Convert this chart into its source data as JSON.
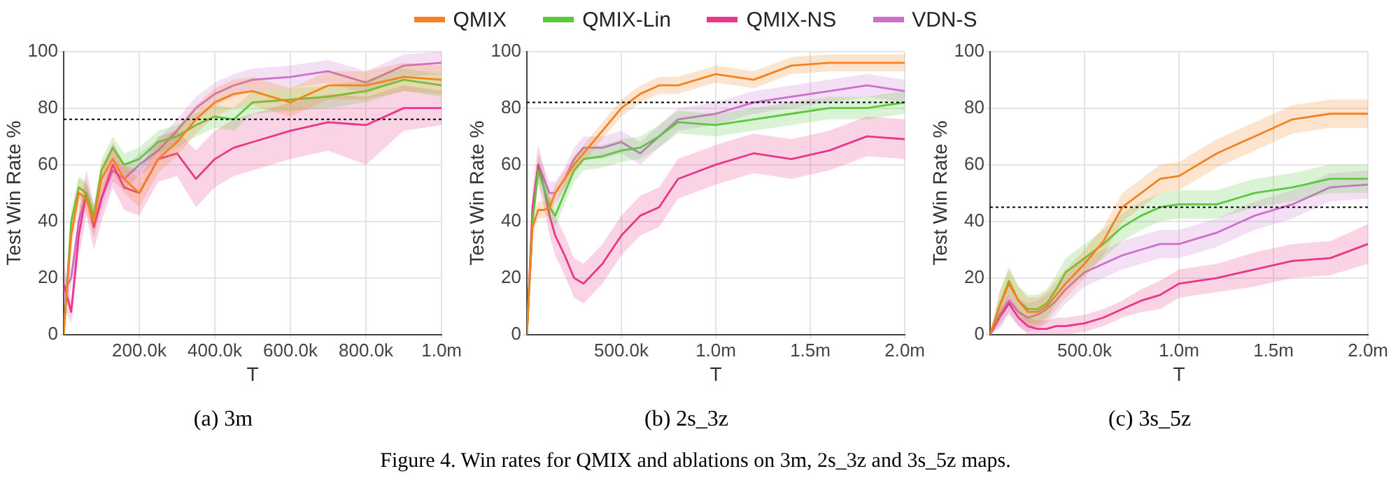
{
  "chart_data": [
    {
      "type": "line",
      "title": "(a) 3m",
      "xlabel": "T",
      "ylabel": "Test Win Rate %",
      "legend": "top",
      "grid": true,
      "marker": "none",
      "line_style": "solid",
      "annotations": [
        "Figure 4. Win rates for QMIX and ablations on 3m, 2s_3z and 3s_5z maps."
      ],
      "x": [
        0,
        20000,
        40000,
        60000,
        80000,
        100000,
        130000,
        160000,
        200000,
        250000,
        300000,
        350000,
        400000,
        450000,
        500000,
        600000,
        700000,
        800000,
        900000,
        1000000
      ],
      "xlim": [
        0,
        1000000
      ],
      "xticks": [
        {
          "value": 200000,
          "label": "200.0k"
        },
        {
          "value": 400000,
          "label": "400.0k"
        },
        {
          "value": 600000,
          "label": "600.0k"
        },
        {
          "value": 800000,
          "label": "800.0k"
        },
        {
          "value": 1000000,
          "label": "1.0m"
        }
      ],
      "ylim": [
        0,
        100
      ],
      "yticks": [
        0,
        20,
        40,
        60,
        80,
        100
      ],
      "ref_lines": [
        {
          "axis": "y",
          "value": 76,
          "line_style": "dotted"
        }
      ],
      "series": [
        {
          "name": "QMIX",
          "color": "#f5821f",
          "values": [
            0,
            35,
            50,
            48,
            40,
            55,
            62,
            55,
            50,
            62,
            68,
            76,
            82,
            85,
            86,
            82,
            88,
            88,
            91,
            90
          ],
          "lower": [
            0,
            30,
            45,
            43,
            35,
            50,
            57,
            50,
            45,
            57,
            63,
            71,
            77,
            80,
            81,
            77,
            83,
            83,
            86,
            85
          ],
          "upper": [
            0,
            40,
            55,
            53,
            45,
            60,
            67,
            60,
            55,
            67,
            73,
            81,
            87,
            90,
            91,
            87,
            93,
            93,
            96,
            95
          ]
        },
        {
          "name": "QMIX-Lin",
          "color": "#5cc93e",
          "values": [
            0,
            40,
            52,
            50,
            42,
            58,
            66,
            60,
            62,
            68,
            70,
            74,
            77,
            76,
            82,
            83,
            84,
            86,
            90,
            88
          ],
          "lower": [
            0,
            36,
            48,
            46,
            38,
            54,
            62,
            56,
            58,
            64,
            66,
            70,
            73,
            72,
            78,
            79,
            80,
            82,
            86,
            84
          ],
          "upper": [
            0,
            44,
            56,
            54,
            46,
            62,
            70,
            64,
            66,
            72,
            74,
            78,
            81,
            80,
            86,
            87,
            88,
            90,
            94,
            92
          ]
        },
        {
          "name": "QMIX-NS",
          "color": "#e8378a",
          "values": [
            18,
            8,
            35,
            50,
            38,
            48,
            60,
            52,
            50,
            62,
            64,
            55,
            62,
            66,
            68,
            72,
            75,
            74,
            80,
            80
          ],
          "lower": [
            10,
            4,
            27,
            42,
            30,
            40,
            52,
            44,
            42,
            54,
            56,
            45,
            52,
            56,
            58,
            62,
            65,
            60,
            72,
            74
          ],
          "upper": [
            26,
            12,
            43,
            58,
            46,
            56,
            68,
            60,
            58,
            70,
            72,
            65,
            72,
            76,
            78,
            82,
            85,
            84,
            88,
            86
          ]
        },
        {
          "name": "VDN-S",
          "color": "#cc70cc",
          "values": [
            15,
            20,
            40,
            50,
            38,
            48,
            58,
            55,
            60,
            65,
            72,
            80,
            85,
            88,
            90,
            91,
            93,
            89,
            95,
            96
          ],
          "lower": [
            11,
            16,
            36,
            46,
            34,
            44,
            54,
            51,
            56,
            61,
            68,
            76,
            81,
            84,
            86,
            87,
            89,
            85,
            91,
            92
          ],
          "upper": [
            19,
            24,
            44,
            54,
            42,
            52,
            62,
            59,
            64,
            69,
            76,
            84,
            89,
            92,
            94,
            95,
            97,
            93,
            99,
            100
          ]
        }
      ]
    },
    {
      "type": "line",
      "title": "(b) 2s_3z",
      "xlabel": "T",
      "ylabel": "Test Win Rate %",
      "grid": true,
      "marker": "none",
      "line_style": "solid",
      "x": [
        0,
        30000,
        60000,
        90000,
        120000,
        150000,
        200000,
        250000,
        300000,
        400000,
        500000,
        600000,
        700000,
        800000,
        1000000,
        1200000,
        1400000,
        1600000,
        1800000,
        2000000
      ],
      "xlim": [
        0,
        2000000
      ],
      "xticks": [
        {
          "value": 500000,
          "label": "500.0k"
        },
        {
          "value": 1000000,
          "label": "1.0m"
        },
        {
          "value": 1500000,
          "label": "1.5m"
        },
        {
          "value": 2000000,
          "label": "2.0m"
        }
      ],
      "ylim": [
        0,
        100
      ],
      "yticks": [
        0,
        20,
        40,
        60,
        80,
        100
      ],
      "ref_lines": [
        {
          "axis": "y",
          "value": 82,
          "line_style": "dotted"
        }
      ],
      "series": [
        {
          "color": "#f5821f",
          "values": [
            0,
            38,
            44,
            44,
            45,
            50,
            55,
            60,
            64,
            72,
            80,
            85,
            88,
            88,
            92,
            90,
            95,
            96,
            96,
            96
          ],
          "lower": [
            0,
            35,
            41,
            41,
            42,
            47,
            52,
            57,
            61,
            69,
            77,
            82,
            85,
            85,
            89,
            87,
            92,
            93,
            93,
            93
          ],
          "upper": [
            0,
            41,
            47,
            47,
            48,
            53,
            58,
            63,
            67,
            75,
            83,
            88,
            91,
            91,
            95,
            93,
            98,
            99,
            99,
            99
          ]
        },
        {
          "color": "#5cc93e",
          "values": [
            0,
            40,
            58,
            52,
            45,
            42,
            50,
            58,
            62,
            63,
            65,
            66,
            70,
            75,
            74,
            76,
            78,
            80,
            80,
            82
          ],
          "lower": [
            0,
            36,
            54,
            48,
            41,
            38,
            46,
            54,
            58,
            59,
            61,
            62,
            66,
            71,
            70,
            72,
            74,
            76,
            76,
            78
          ],
          "upper": [
            0,
            44,
            62,
            56,
            49,
            46,
            54,
            62,
            66,
            67,
            69,
            70,
            74,
            79,
            78,
            80,
            82,
            84,
            84,
            86
          ]
        },
        {
          "color": "#e8378a",
          "values": [
            0,
            45,
            60,
            52,
            42,
            35,
            28,
            20,
            18,
            25,
            35,
            42,
            45,
            55,
            60,
            64,
            62,
            65,
            70,
            69
          ],
          "lower": [
            0,
            38,
            53,
            45,
            35,
            28,
            21,
            13,
            11,
            18,
            28,
            35,
            38,
            48,
            53,
            57,
            55,
            58,
            63,
            62
          ],
          "upper": [
            0,
            52,
            67,
            59,
            49,
            42,
            35,
            27,
            25,
            32,
            42,
            49,
            52,
            62,
            67,
            71,
            69,
            72,
            77,
            76
          ]
        },
        {
          "color": "#cc70cc",
          "values": [
            0,
            40,
            60,
            55,
            50,
            50,
            55,
            62,
            66,
            66,
            68,
            64,
            70,
            76,
            78,
            82,
            84,
            86,
            88,
            86
          ],
          "lower": [
            0,
            36,
            56,
            51,
            46,
            46,
            51,
            58,
            62,
            62,
            64,
            60,
            66,
            72,
            74,
            78,
            80,
            82,
            84,
            82
          ],
          "upper": [
            0,
            44,
            64,
            59,
            54,
            54,
            59,
            66,
            70,
            70,
            72,
            68,
            74,
            80,
            82,
            86,
            88,
            90,
            92,
            90
          ]
        }
      ]
    },
    {
      "type": "line",
      "title": "(c) 3s_5z",
      "xlabel": "T",
      "ylabel": "Test Win Rate %",
      "grid": true,
      "marker": "none",
      "line_style": "solid",
      "x": [
        0,
        50000,
        100000,
        150000,
        200000,
        250000,
        300000,
        350000,
        400000,
        500000,
        600000,
        700000,
        800000,
        900000,
        1000000,
        1200000,
        1400000,
        1600000,
        1800000,
        2000000
      ],
      "xlim": [
        0,
        2000000
      ],
      "xticks": [
        {
          "value": 500000,
          "label": "500.0k"
        },
        {
          "value": 1000000,
          "label": "1.0m"
        },
        {
          "value": 1500000,
          "label": "1.5m"
        },
        {
          "value": 2000000,
          "label": "2.0m"
        }
      ],
      "ylim": [
        0,
        100
      ],
      "yticks": [
        0,
        20,
        40,
        60,
        80,
        100
      ],
      "ref_lines": [
        {
          "axis": "y",
          "value": 45,
          "line_style": "dotted"
        }
      ],
      "series": [
        {
          "color": "#f5821f",
          "values": [
            0,
            10,
            18,
            12,
            8,
            8,
            10,
            14,
            18,
            25,
            33,
            45,
            50,
            55,
            56,
            64,
            70,
            76,
            78,
            78
          ],
          "lower": [
            0,
            5,
            13,
            7,
            3,
            3,
            5,
            9,
            13,
            20,
            28,
            40,
            45,
            50,
            51,
            59,
            65,
            71,
            73,
            73
          ],
          "upper": [
            0,
            15,
            23,
            17,
            13,
            13,
            15,
            19,
            23,
            30,
            38,
            50,
            55,
            60,
            61,
            69,
            75,
            81,
            83,
            83
          ]
        },
        {
          "color": "#5cc93e",
          "values": [
            0,
            10,
            19,
            12,
            9,
            9,
            11,
            16,
            22,
            27,
            32,
            38,
            42,
            45,
            46,
            46,
            50,
            52,
            55,
            55
          ],
          "lower": [
            0,
            5,
            14,
            7,
            4,
            4,
            6,
            11,
            17,
            22,
            27,
            33,
            37,
            40,
            41,
            41,
            45,
            47,
            50,
            50
          ],
          "upper": [
            0,
            15,
            24,
            17,
            14,
            14,
            16,
            21,
            27,
            32,
            37,
            43,
            47,
            50,
            51,
            51,
            55,
            57,
            60,
            60
          ]
        },
        {
          "color": "#e8378a",
          "values": [
            0,
            6,
            11,
            6,
            3,
            2,
            2,
            3,
            3,
            4,
            6,
            9,
            12,
            14,
            18,
            20,
            23,
            26,
            27,
            32
          ],
          "lower": [
            0,
            3,
            8,
            3,
            0,
            0,
            0,
            0,
            0,
            1,
            3,
            6,
            8,
            9,
            13,
            15,
            17,
            20,
            21,
            25
          ],
          "upper": [
            0,
            9,
            14,
            9,
            6,
            5,
            5,
            6,
            6,
            7,
            9,
            12,
            16,
            19,
            23,
            25,
            29,
            32,
            33,
            39
          ]
        },
        {
          "color": "#cc70cc",
          "values": [
            0,
            7,
            12,
            8,
            6,
            7,
            9,
            12,
            16,
            22,
            25,
            28,
            30,
            32,
            32,
            36,
            42,
            46,
            52,
            53
          ],
          "lower": [
            0,
            2,
            7,
            3,
            1,
            2,
            4,
            7,
            11,
            17,
            20,
            23,
            25,
            27,
            27,
            31,
            37,
            41,
            47,
            48
          ],
          "upper": [
            0,
            12,
            17,
            13,
            11,
            12,
            14,
            17,
            21,
            27,
            30,
            33,
            35,
            37,
            37,
            41,
            47,
            51,
            57,
            58
          ]
        }
      ]
    }
  ]
}
